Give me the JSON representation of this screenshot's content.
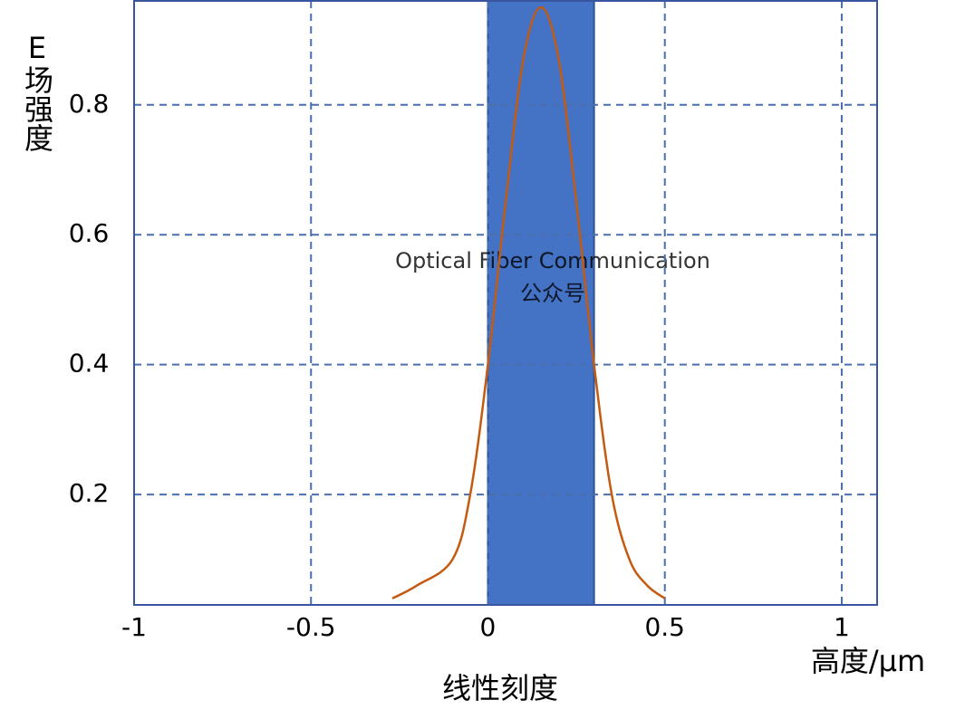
{
  "chart_data": {
    "type": "line",
    "x_label": "线性刻度",
    "unit_label": "高度/μm",
    "y_label": "E场强度",
    "watermark": [
      "Optical Fiber Communication",
      "公众号"
    ],
    "x": [
      -0.27,
      -0.2,
      -0.1,
      -0.05,
      0,
      0.05,
      0.1,
      0.15,
      0.2,
      0.25,
      0.3,
      0.35,
      0.4,
      0.45,
      0.5
    ],
    "values": [
      0.04,
      0.06,
      0.1,
      0.2,
      0.4,
      0.65,
      0.87,
      0.95,
      0.87,
      0.65,
      0.4,
      0.2,
      0.1,
      0.06,
      0.04
    ],
    "color": "#c55a11",
    "band": [
      0,
      0.3
    ],
    "band_color": "#4472c4",
    "xlim": [
      -1,
      1.1
    ],
    "xticks": [
      -1,
      -0.5,
      0,
      0.5,
      1
    ],
    "ylim": [
      0.03,
      0.96
    ],
    "yticks": [
      0.2,
      0.4,
      0.6,
      0.8
    ],
    "grid": true
  }
}
